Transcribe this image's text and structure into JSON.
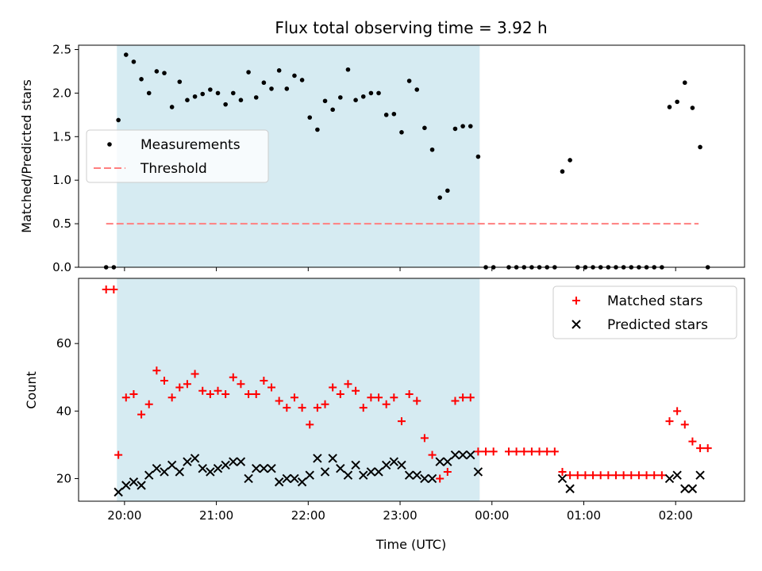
{
  "title": "Flux total observing time = 3.92 h",
  "xlabel": "Time (UTC)",
  "x_ticks": [
    "20:00",
    "21:00",
    "22:00",
    "23:00",
    "00:00",
    "01:00",
    "02:00"
  ],
  "colors": {
    "highlight": "#add8e6",
    "matched": "#ff0000",
    "predicted": "#000000",
    "threshold": "#ff7f7f"
  },
  "chart_data": [
    {
      "type": "scatter",
      "ylabel": "Matched/Predicted stars",
      "ylim": [
        0,
        2.55
      ],
      "y_ticks": [
        "0.0",
        "0.5",
        "1.0",
        "1.5",
        "2.0",
        "2.5"
      ],
      "x_range": [
        "19:30",
        "02:45"
      ],
      "highlight_span": [
        "19:55",
        "23:52"
      ],
      "legend": {
        "placement": "center-left",
        "entries": [
          "Measurements",
          "Threshold"
        ]
      },
      "threshold": {
        "y": 0.5,
        "x": [
          "19:48",
          "02:15"
        ]
      },
      "series": [
        {
          "name": "Measurements",
          "marker": "dot",
          "points": [
            [
              "19:48",
              0
            ],
            [
              "19:53",
              0
            ],
            [
              "19:56",
              1.69
            ],
            [
              "20:01",
              2.44
            ],
            [
              "20:06",
              2.36
            ],
            [
              "20:11",
              2.16
            ],
            [
              "20:16",
              2.0
            ],
            [
              "20:21",
              2.25
            ],
            [
              "20:26",
              2.23
            ],
            [
              "20:31",
              1.84
            ],
            [
              "20:36",
              2.13
            ],
            [
              "20:41",
              1.92
            ],
            [
              "20:46",
              1.96
            ],
            [
              "20:51",
              1.99
            ],
            [
              "20:56",
              2.04
            ],
            [
              "21:01",
              2.0
            ],
            [
              "21:06",
              1.87
            ],
            [
              "21:11",
              2.0
            ],
            [
              "21:16",
              1.92
            ],
            [
              "21:21",
              2.24
            ],
            [
              "21:26",
              1.95
            ],
            [
              "21:31",
              2.12
            ],
            [
              "21:36",
              2.05
            ],
            [
              "21:41",
              2.26
            ],
            [
              "21:46",
              2.05
            ],
            [
              "21:51",
              2.2
            ],
            [
              "21:56",
              2.15
            ],
            [
              "22:01",
              1.72
            ],
            [
              "22:06",
              1.58
            ],
            [
              "22:11",
              1.91
            ],
            [
              "22:16",
              1.81
            ],
            [
              "22:21",
              1.95
            ],
            [
              "22:26",
              2.27
            ],
            [
              "22:31",
              1.92
            ],
            [
              "22:36",
              1.96
            ],
            [
              "22:41",
              2.0
            ],
            [
              "22:46",
              2.0
            ],
            [
              "22:51",
              1.75
            ],
            [
              "22:56",
              1.76
            ],
            [
              "23:01",
              1.55
            ],
            [
              "23:06",
              2.14
            ],
            [
              "23:11",
              2.04
            ],
            [
              "23:16",
              1.6
            ],
            [
              "23:21",
              1.35
            ],
            [
              "23:26",
              0.8
            ],
            [
              "23:31",
              0.88
            ],
            [
              "23:36",
              1.59
            ],
            [
              "23:41",
              1.62
            ],
            [
              "23:46",
              1.62
            ],
            [
              "23:51",
              1.27
            ],
            [
              "23:56",
              0
            ],
            [
              "00:01",
              0
            ],
            [
              "00:11",
              0
            ],
            [
              "00:16",
              0
            ],
            [
              "00:21",
              0
            ],
            [
              "00:26",
              0
            ],
            [
              "00:31",
              0
            ],
            [
              "00:36",
              0
            ],
            [
              "00:41",
              0
            ],
            [
              "00:46",
              1.1
            ],
            [
              "00:51",
              1.23
            ],
            [
              "00:56",
              0
            ],
            [
              "01:01",
              0
            ],
            [
              "01:06",
              0
            ],
            [
              "01:11",
              0
            ],
            [
              "01:16",
              0
            ],
            [
              "01:21",
              0
            ],
            [
              "01:26",
              0
            ],
            [
              "01:31",
              0
            ],
            [
              "01:36",
              0
            ],
            [
              "01:41",
              0
            ],
            [
              "01:46",
              0
            ],
            [
              "01:51",
              0
            ],
            [
              "01:56",
              1.84
            ],
            [
              "02:01",
              1.9
            ],
            [
              "02:06",
              2.12
            ],
            [
              "02:11",
              1.83
            ],
            [
              "02:16",
              1.38
            ],
            [
              "02:21",
              0
            ]
          ]
        }
      ]
    },
    {
      "type": "scatter",
      "ylabel": "Count",
      "ylim": [
        13.3,
        79.3
      ],
      "y_ticks": [
        "20",
        "40",
        "60"
      ],
      "x_range": [
        "19:30",
        "02:45"
      ],
      "highlight_span": [
        "19:55",
        "23:52"
      ],
      "legend": {
        "placement": "top-right",
        "entries": [
          "Matched stars",
          "Predicted stars"
        ]
      },
      "series": [
        {
          "name": "Matched stars",
          "marker": "plus",
          "points": [
            [
              "19:48",
              76
            ],
            [
              "19:53",
              76
            ],
            [
              "19:56",
              27
            ],
            [
              "20:01",
              44
            ],
            [
              "20:06",
              45
            ],
            [
              "20:11",
              39
            ],
            [
              "20:16",
              42
            ],
            [
              "20:21",
              52
            ],
            [
              "20:26",
              49
            ],
            [
              "20:31",
              44
            ],
            [
              "20:36",
              47
            ],
            [
              "20:41",
              48
            ],
            [
              "20:46",
              51
            ],
            [
              "20:51",
              46
            ],
            [
              "20:56",
              45
            ],
            [
              "21:01",
              46
            ],
            [
              "21:06",
              45
            ],
            [
              "21:11",
              50
            ],
            [
              "21:16",
              48
            ],
            [
              "21:21",
              45
            ],
            [
              "21:26",
              45
            ],
            [
              "21:31",
              49
            ],
            [
              "21:36",
              47
            ],
            [
              "21:41",
              43
            ],
            [
              "21:46",
              41
            ],
            [
              "21:51",
              44
            ],
            [
              "21:56",
              41
            ],
            [
              "22:01",
              36
            ],
            [
              "22:06",
              41
            ],
            [
              "22:11",
              42
            ],
            [
              "22:16",
              47
            ],
            [
              "22:21",
              45
            ],
            [
              "22:26",
              48
            ],
            [
              "22:31",
              46
            ],
            [
              "22:36",
              41
            ],
            [
              "22:41",
              44
            ],
            [
              "22:46",
              44
            ],
            [
              "22:51",
              42
            ],
            [
              "22:56",
              44
            ],
            [
              "23:01",
              37
            ],
            [
              "23:06",
              45
            ],
            [
              "23:11",
              43
            ],
            [
              "23:16",
              32
            ],
            [
              "23:21",
              27
            ],
            [
              "23:26",
              20
            ],
            [
              "23:31",
              22
            ],
            [
              "23:36",
              43
            ],
            [
              "23:41",
              44
            ],
            [
              "23:46",
              44
            ],
            [
              "23:51",
              28
            ],
            [
              "23:56",
              28
            ],
            [
              "00:01",
              28
            ],
            [
              "00:11",
              28
            ],
            [
              "00:16",
              28
            ],
            [
              "00:21",
              28
            ],
            [
              "00:26",
              28
            ],
            [
              "00:31",
              28
            ],
            [
              "00:36",
              28
            ],
            [
              "00:41",
              28
            ],
            [
              "00:46",
              22
            ],
            [
              "00:51",
              21
            ],
            [
              "00:56",
              21
            ],
            [
              "01:01",
              21
            ],
            [
              "01:06",
              21
            ],
            [
              "01:11",
              21
            ],
            [
              "01:16",
              21
            ],
            [
              "01:21",
              21
            ],
            [
              "01:26",
              21
            ],
            [
              "01:31",
              21
            ],
            [
              "01:36",
              21
            ],
            [
              "01:41",
              21
            ],
            [
              "01:46",
              21
            ],
            [
              "01:51",
              21
            ],
            [
              "01:56",
              37
            ],
            [
              "02:01",
              40
            ],
            [
              "02:06",
              36
            ],
            [
              "02:11",
              31
            ],
            [
              "02:16",
              29
            ],
            [
              "02:21",
              29
            ]
          ]
        },
        {
          "name": "Predicted stars",
          "marker": "x",
          "points": [
            [
              "19:56",
              16
            ],
            [
              "20:01",
              18
            ],
            [
              "20:06",
              19
            ],
            [
              "20:11",
              18
            ],
            [
              "20:16",
              21
            ],
            [
              "20:21",
              23
            ],
            [
              "20:26",
              22
            ],
            [
              "20:31",
              24
            ],
            [
              "20:36",
              22
            ],
            [
              "20:41",
              25
            ],
            [
              "20:46",
              26
            ],
            [
              "20:51",
              23
            ],
            [
              "20:56",
              22
            ],
            [
              "21:01",
              23
            ],
            [
              "21:06",
              24
            ],
            [
              "21:11",
              25
            ],
            [
              "21:16",
              25
            ],
            [
              "21:21",
              20
            ],
            [
              "21:26",
              23
            ],
            [
              "21:31",
              23
            ],
            [
              "21:36",
              23
            ],
            [
              "21:41",
              19
            ],
            [
              "21:46",
              20
            ],
            [
              "21:51",
              20
            ],
            [
              "21:56",
              19
            ],
            [
              "22:01",
              21
            ],
            [
              "22:06",
              26
            ],
            [
              "22:11",
              22
            ],
            [
              "22:16",
              26
            ],
            [
              "22:21",
              23
            ],
            [
              "22:26",
              21
            ],
            [
              "22:31",
              24
            ],
            [
              "22:36",
              21
            ],
            [
              "22:41",
              22
            ],
            [
              "22:46",
              22
            ],
            [
              "22:51",
              24
            ],
            [
              "22:56",
              25
            ],
            [
              "23:01",
              24
            ],
            [
              "23:06",
              21
            ],
            [
              "23:11",
              21
            ],
            [
              "23:16",
              20
            ],
            [
              "23:21",
              20
            ],
            [
              "23:26",
              25
            ],
            [
              "23:31",
              25
            ],
            [
              "23:36",
              27
            ],
            [
              "23:41",
              27
            ],
            [
              "23:46",
              27
            ],
            [
              "23:51",
              22
            ],
            [
              "00:46",
              20
            ],
            [
              "00:51",
              17
            ],
            [
              "01:56",
              20
            ],
            [
              "02:01",
              21
            ],
            [
              "02:06",
              17
            ],
            [
              "02:11",
              17
            ],
            [
              "02:16",
              21
            ]
          ]
        }
      ]
    }
  ]
}
